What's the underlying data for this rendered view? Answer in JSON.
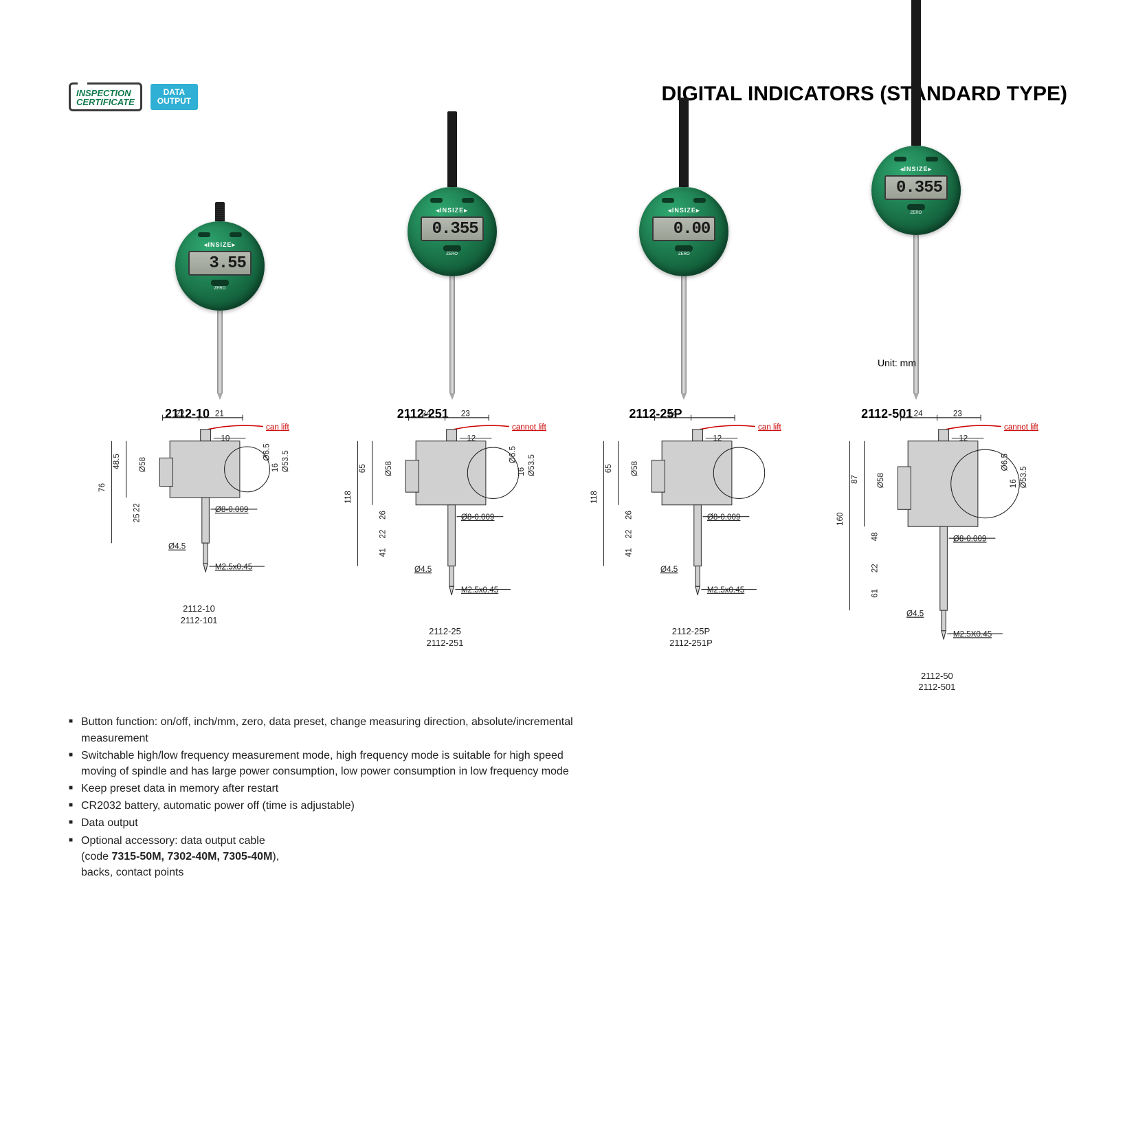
{
  "badges": {
    "inspection_line1": "INSPECTION",
    "inspection_line2": "CERTIFICATE",
    "data_line1": "DATA",
    "data_line2": "OUTPUT"
  },
  "title": "DIGITAL INDICATORS (STANDARD TYPE)",
  "unit_label": "Unit: mm",
  "brand": "INSIZE",
  "zero_label": "ZERO",
  "products": [
    {
      "model": "2112-10",
      "reading": "3.55",
      "stem_top_h": 28,
      "stem_top_ridged": true,
      "spindle_h": 120
    },
    {
      "model": "2112-251",
      "reading": "0.355",
      "stem_top_h": 110,
      "stem_top_ridged": false,
      "spindle_h": 170
    },
    {
      "model": "2112-25P",
      "reading": "0.00",
      "stem_top_h": 130,
      "stem_top_ridged": false,
      "spindle_h": 170
    },
    {
      "model": "2112-501",
      "reading": "0.355",
      "stem_top_h": 260,
      "stem_top_ridged": false,
      "spindle_h": 230
    }
  ],
  "diagrams": [
    {
      "codes": [
        "2112-10",
        "2112-101"
      ],
      "lift_label": "can lift",
      "dims": {
        "top1": "22",
        "top2": "21",
        "top3": "10",
        "h1": "48.5",
        "h2": "76",
        "h3": "22",
        "h4": "25",
        "dia58": "Ø58",
        "d65": "Ø6.5",
        "d16": "16",
        "d535": "Ø53.5",
        "shaft": "Ø8-0.009",
        "d45": "Ø4.5",
        "thread": "M2.5x0.45"
      }
    },
    {
      "codes": [
        "2112-25",
        "2112-251"
      ],
      "lift_label": "cannot lift",
      "dims": {
        "top1": "24",
        "top2": "23",
        "top3": "12",
        "h1": "65",
        "h2": "118",
        "h3": "26",
        "h4": "22",
        "h5": "41",
        "dia58": "Ø58",
        "d65": "Ø6.5",
        "d16": "16",
        "d535": "Ø53.5",
        "shaft": "Ø8-0.009",
        "d45": "Ø4.5",
        "thread": "M2.5x0.45"
      }
    },
    {
      "codes": [
        "2112-25P",
        "2112-251P"
      ],
      "lift_label": "can lift",
      "dims": {
        "top1": "24",
        "top3": "12",
        "h1": "65",
        "h2": "118",
        "h3": "26",
        "h4": "22",
        "h5": "41",
        "dia58": "Ø58",
        "shaft": "Ø8-0.009",
        "d45": "Ø4.5",
        "thread": "M2.5x0.45"
      }
    },
    {
      "codes": [
        "2112-50",
        "2112-501"
      ],
      "lift_label": "cannot lift",
      "dims": {
        "top1": "24",
        "top2": "23",
        "top3": "12",
        "h1": "87",
        "h2": "160",
        "h3": "48",
        "h4": "22",
        "h5": "61",
        "dia58": "Ø58",
        "d65": "Ø6.5",
        "d16": "16",
        "d535": "Ø53.5",
        "shaft": "Ø8-0.009",
        "d45": "Ø4.5",
        "thread": "M2.5X0.45"
      }
    }
  ],
  "features": [
    "Button function: on/off, inch/mm, zero, data preset, change measuring direction, absolute/incremental measurement",
    "Switchable high/low frequency measurement mode, high frequency mode is suitable for high speed moving of spindle and has large power consumption, low power consumption in low frequency mode",
    "Keep preset data in memory after restart",
    "CR2032 battery, automatic power off (time is adjustable)",
    "Data output"
  ],
  "accessory": {
    "text1": "Optional accessory: data output cable",
    "text2": "(code ",
    "codes": "7315-50M, 7302-40M, 7305-40M",
    "text3": "),",
    "text4": "backs, contact points"
  },
  "colors": {
    "brand_green": "#176b43",
    "badge_teal": "#2fb0d4",
    "text": "#222222",
    "red": "#cc0000"
  }
}
